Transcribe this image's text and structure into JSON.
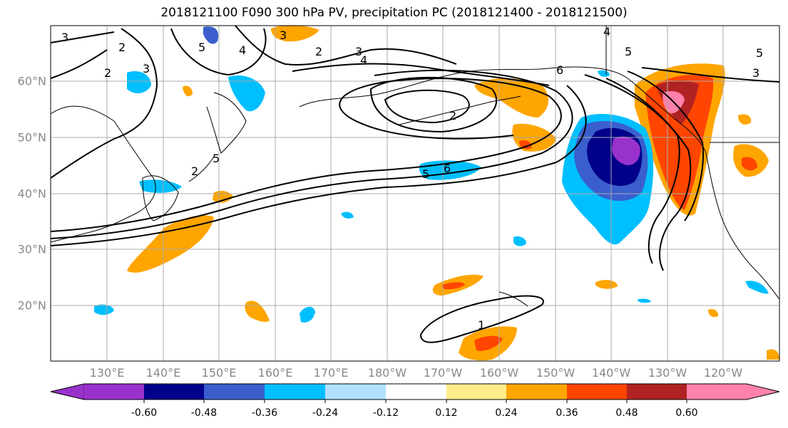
{
  "title": "2018121100 F090 300 hPa PV, precipitation PC (2018121400 - 2018121500)",
  "map": {
    "lat_labels": [
      "60°N",
      "50°N",
      "40°N",
      "30°N",
      "20°N"
    ],
    "lon_labels": [
      "130°E",
      "140°E",
      "150°E",
      "160°E",
      "170°E",
      "180°W",
      "170°W",
      "160°W",
      "150°W",
      "140°W",
      "130°W",
      "120°W"
    ],
    "contour_labels": [
      "3",
      "2",
      "2",
      "3",
      "3",
      "4",
      "5",
      "2",
      "3",
      "4",
      "2",
      "6",
      "5",
      "5",
      "2",
      "6",
      "5",
      "4",
      "3",
      "5",
      "1"
    ],
    "colors": {
      "land_outline": "#000000",
      "grid": "#aaaaaa",
      "contour": "#000000"
    }
  },
  "colorbar": {
    "levels": [
      "-0.60",
      "-0.48",
      "-0.36",
      "-0.24",
      "-0.12",
      "0.12",
      "0.24",
      "0.36",
      "0.48",
      "0.60"
    ],
    "colors": [
      "#9932cc",
      "#00008b",
      "#3a5fcd",
      "#00bfff",
      "#b0e2ff",
      "#ffffff",
      "#ffec8b",
      "#ffa500",
      "#ff4500",
      "#b22222",
      "#ff82ab"
    ]
  }
}
